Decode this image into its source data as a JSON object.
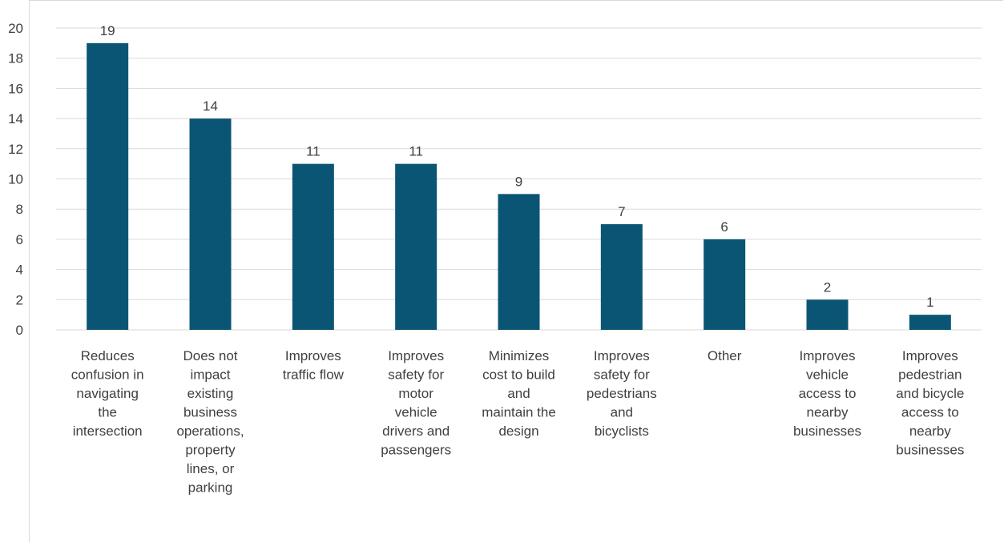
{
  "chart_data": {
    "type": "bar",
    "title": "",
    "xlabel": "",
    "ylabel": "",
    "ylim": [
      0,
      20
    ],
    "yticks": [
      0,
      2,
      4,
      6,
      8,
      10,
      12,
      14,
      16,
      18,
      20
    ],
    "grid": true,
    "legend": "none",
    "bar_color": "#0b5574",
    "gridline_color": "#d9d9d9",
    "text_color": "#404040",
    "categories": [
      [
        "Reduces",
        "confusion in",
        "navigating",
        "the",
        "intersection"
      ],
      [
        "Does not",
        "impact",
        "existing",
        "business",
        "operations,",
        "property",
        "lines, or",
        "parking"
      ],
      [
        "Improves",
        "traffic flow"
      ],
      [
        "Improves",
        "safety for",
        "motor",
        "vehicle",
        "drivers and",
        "passengers"
      ],
      [
        "Minimizes",
        "cost to build",
        "and",
        "maintain the",
        "design"
      ],
      [
        "Improves",
        "safety for",
        "pedestrians",
        "and",
        "bicyclists"
      ],
      [
        "Other"
      ],
      [
        "Improves",
        "vehicle",
        "access to",
        "nearby",
        "businesses"
      ],
      [
        "Improves",
        "pedestrian",
        "and bicycle",
        "access to",
        "nearby",
        "businesses"
      ]
    ],
    "values": [
      19,
      14,
      11,
      11,
      9,
      7,
      6,
      2,
      1
    ]
  }
}
